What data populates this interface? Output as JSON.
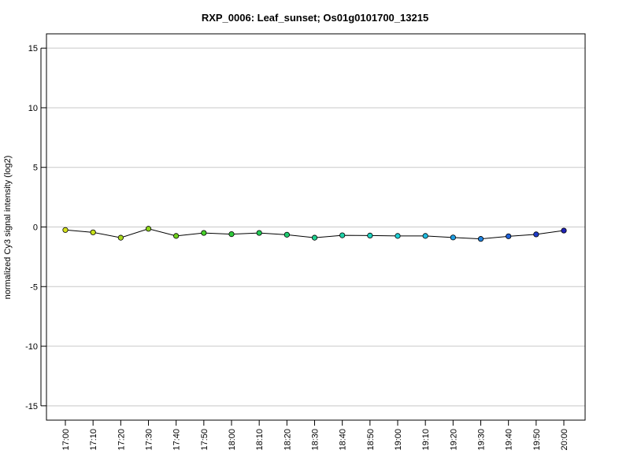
{
  "chart_data": {
    "type": "line",
    "title": "RXP_0006: Leaf_sunset; Os01g0101700_13215",
    "xlabel": "",
    "ylabel": "normalized Cy3 signal intensity (log2)",
    "ylim": [
      -16.2,
      16.2
    ],
    "yticks": [
      -15,
      -10,
      -5,
      0,
      5,
      10,
      15
    ],
    "grid": true,
    "legend": "none",
    "categories": [
      "17:00",
      "17:10",
      "17:20",
      "17:30",
      "17:40",
      "17:50",
      "18:00",
      "18:10",
      "18:20",
      "18:30",
      "18:40",
      "18:50",
      "19:00",
      "19:10",
      "19:20",
      "19:30",
      "19:40",
      "19:50",
      "20:00"
    ],
    "values": [
      -0.25,
      -0.45,
      -0.9,
      -0.15,
      -0.75,
      -0.5,
      -0.6,
      -0.5,
      -0.65,
      -0.9,
      -0.7,
      -0.72,
      -0.75,
      -0.75,
      -0.88,
      -1.0,
      -0.78,
      -0.62,
      -0.3
    ],
    "point_colors": [
      "#d6e21c",
      "#c8e21c",
      "#a9d81c",
      "#8fd61c",
      "#6fd21c",
      "#46d02a",
      "#2fcc3c",
      "#22cc55",
      "#1fcc70",
      "#1fd08e",
      "#1fd2a8",
      "#1fd4c0",
      "#1fd0d6",
      "#1fbce0",
      "#1f9ee2",
      "#1f82de",
      "#1f60d6",
      "#1f3cc8",
      "#1f22b8"
    ]
  }
}
